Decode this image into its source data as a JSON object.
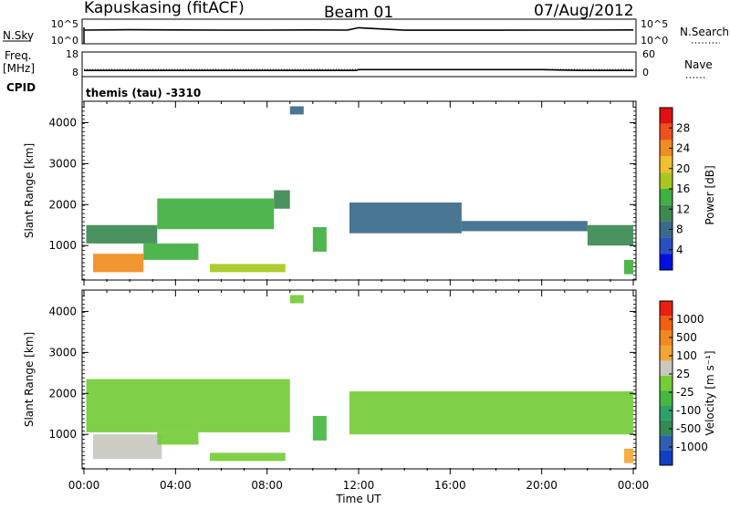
{
  "header": {
    "station": "Kapuskasing (fitACF)",
    "beam": "Beam 01",
    "date": "07/Aug/2012"
  },
  "panels": {
    "nsky": {
      "label": "N.Sky",
      "ticks_left": [
        "10^5",
        "10^0"
      ],
      "ticks_right": [
        "10^5",
        "10^0"
      ],
      "right_label": "N.Search"
    },
    "freq": {
      "label_line1": "Freq.",
      "label_line2": "[MHz]",
      "ticks_left": [
        "18",
        "8"
      ],
      "ticks_right": [
        "60",
        "0"
      ],
      "right_label": "Nave"
    },
    "cpid": {
      "label": "CPID",
      "text": "themis (tau) -3310"
    }
  },
  "axes": {
    "x_ticks": [
      "00:00",
      "04:00",
      "08:00",
      "12:00",
      "16:00",
      "20:00",
      "00:00"
    ],
    "xlabel": "Time UT",
    "ylabel": "Slant Range [km]",
    "y_ticks": [
      "4000",
      "3000",
      "2000",
      "1000"
    ]
  },
  "colors": {
    "power": [
      "#0010e0",
      "#2850c0",
      "#3a6a8a",
      "#3c8a50",
      "#40b040",
      "#a8c820",
      "#f0c030",
      "#f08c20",
      "#f05020",
      "#e01010"
    ],
    "velocity": [
      "#1040c0",
      "#2e5fae",
      "#338a55",
      "#2ca26a",
      "#45b840",
      "#74cc38",
      "#c8c8c0",
      "#f4a634",
      "#f08a20",
      "#f06010",
      "#e82010"
    ]
  },
  "power_colorbar": {
    "label": "Power [dB]",
    "ticks": [
      "28",
      "24",
      "20",
      "16",
      "12",
      "8",
      "4"
    ]
  },
  "velocity_colorbar": {
    "label": "Velocity [m s⁻¹]",
    "ticks": [
      "1000",
      "500",
      "100",
      "25",
      "-25",
      "-100",
      "-500",
      "-1000"
    ]
  },
  "chart_data": [
    {
      "type": "line",
      "name": "N.Sky",
      "x_range_hours": [
        0,
        24
      ],
      "notes": "noise level trace, roughly flat near top of log axis",
      "x": [
        0,
        2,
        4,
        6,
        8,
        10,
        11.5,
        12,
        14,
        16,
        18,
        20,
        22,
        24
      ],
      "y_log": [
        3.9,
        4.0,
        3.95,
        3.9,
        3.9,
        3.95,
        3.9,
        4.6,
        3.85,
        3.85,
        3.85,
        3.9,
        3.9,
        3.95
      ]
    },
    {
      "type": "line",
      "name": "Freq.",
      "x_range_hours": [
        0,
        24
      ],
      "x": [
        0,
        4,
        8,
        11.9,
        12.0,
        16,
        20,
        21.6,
        24
      ],
      "y": [
        10.2,
        10.2,
        10.2,
        10.2,
        10.6,
        10.6,
        10.6,
        10.2,
        10.2
      ]
    },
    {
      "type": "heatmap",
      "title": "Power",
      "x_range_hours": [
        0,
        24
      ],
      "y_range_km": [
        180,
        4500
      ],
      "color_range_db": [
        0,
        30
      ],
      "regions": [
        {
          "x0": 0.1,
          "x1": 3.2,
          "y0": 1050,
          "y1": 1500,
          "value": 10
        },
        {
          "x0": 3.2,
          "x1": 8.3,
          "y0": 1400,
          "y1": 2150,
          "value": 14
        },
        {
          "x0": 8.3,
          "x1": 9.0,
          "y0": 1900,
          "y1": 2350,
          "value": 9
        },
        {
          "x0": 0.4,
          "x1": 2.6,
          "y0": 350,
          "y1": 800,
          "value": 22
        },
        {
          "x0": 2.6,
          "x1": 5.0,
          "y0": 650,
          "y1": 1050,
          "value": 13
        },
        {
          "x0": 5.5,
          "x1": 8.8,
          "y0": 350,
          "y1": 550,
          "value": 16
        },
        {
          "x0": 9.0,
          "x1": 9.6,
          "y0": 4200,
          "y1": 4400,
          "value": 8
        },
        {
          "x0": 10.0,
          "x1": 10.6,
          "y0": 850,
          "y1": 1450,
          "value": 14
        },
        {
          "x0": 11.6,
          "x1": 16.5,
          "y0": 1300,
          "y1": 2050,
          "value": 7
        },
        {
          "x0": 16.5,
          "x1": 22.0,
          "y0": 1350,
          "y1": 1600,
          "value": 6
        },
        {
          "x0": 22.0,
          "x1": 24.0,
          "y0": 1000,
          "y1": 1500,
          "value": 9
        },
        {
          "x0": 23.6,
          "x1": 24.0,
          "y0": 300,
          "y1": 650,
          "value": 12
        }
      ]
    },
    {
      "type": "heatmap",
      "title": "Velocity",
      "x_range_hours": [
        0,
        24
      ],
      "y_range_km": [
        180,
        4500
      ],
      "color_range_ms": [
        -1000,
        1000
      ],
      "regions": [
        {
          "x0": 0.1,
          "x1": 9.0,
          "y0": 1050,
          "y1": 2350,
          "value": 0
        },
        {
          "x0": 0.4,
          "x1": 3.4,
          "y0": 400,
          "y1": 1000,
          "value": -150
        },
        {
          "x0": 3.2,
          "x1": 5.0,
          "y0": 750,
          "y1": 1050,
          "value": 60
        },
        {
          "x0": 5.5,
          "x1": 8.8,
          "y0": 350,
          "y1": 550,
          "value": 50
        },
        {
          "x0": 9.0,
          "x1": 9.6,
          "y0": 4200,
          "y1": 4400,
          "value": 0
        },
        {
          "x0": 10.0,
          "x1": 10.6,
          "y0": 850,
          "y1": 1450,
          "value": 200
        },
        {
          "x0": 11.6,
          "x1": 24.0,
          "y0": 1000,
          "y1": 2050,
          "value": 0
        },
        {
          "x0": 23.6,
          "x1": 24.0,
          "y0": 300,
          "y1": 650,
          "value": -300
        }
      ]
    }
  ]
}
